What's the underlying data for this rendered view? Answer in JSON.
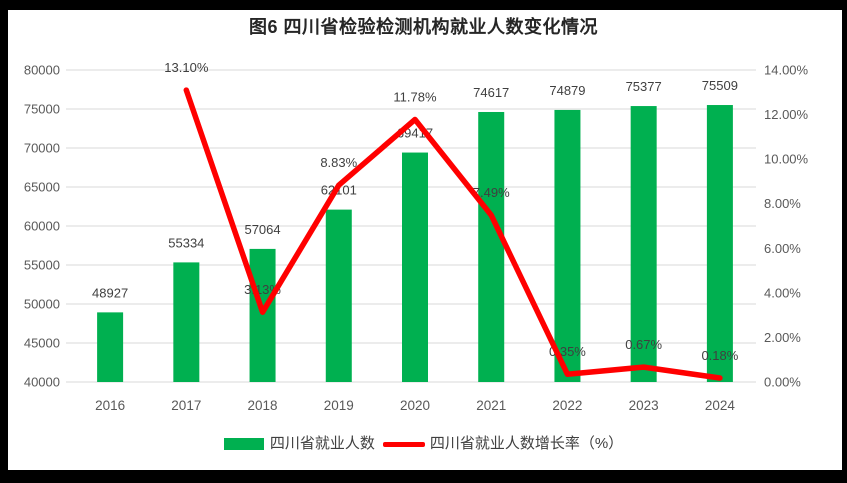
{
  "chart_data": {
    "type": "combo",
    "title": "图6  四川省检验检测机构就业人数变化情况",
    "categories": [
      "2016",
      "2017",
      "2018",
      "2019",
      "2020",
      "2021",
      "2022",
      "2023",
      "2024"
    ],
    "series": [
      {
        "name": "四川省就业人数",
        "type": "bar",
        "axis": "left",
        "color": "#00B050",
        "values": [
          48927,
          55334,
          57064,
          62101,
          69417,
          74617,
          74879,
          75377,
          75509
        ],
        "labels": [
          "48927",
          "55334",
          "57064",
          "62101",
          "69417",
          "74617",
          "74879",
          "75377",
          "75509"
        ]
      },
      {
        "name": "四川省就业人数增长率（%）",
        "type": "line",
        "axis": "right",
        "color": "#FF0000",
        "values": [
          null,
          13.1,
          3.13,
          8.83,
          11.78,
          7.49,
          0.35,
          0.67,
          0.18
        ],
        "labels": [
          "",
          "13.10%",
          "3.13%",
          "8.83%",
          "11.78%",
          "7.49%",
          "0.35%",
          "0.67%",
          "0.18%"
        ]
      }
    ],
    "left_axis": {
      "min": 40000,
      "max": 80000,
      "step": 5000,
      "ticks": [
        "40000",
        "45000",
        "50000",
        "55000",
        "60000",
        "65000",
        "70000",
        "75000",
        "80000"
      ]
    },
    "right_axis": {
      "min": 0,
      "max": 14,
      "step": 2,
      "ticks": [
        "0.00%",
        "2.00%",
        "4.00%",
        "6.00%",
        "8.00%",
        "10.00%",
        "12.00%",
        "14.00%"
      ]
    },
    "grid": true,
    "legend_position": "bottom",
    "colors": {
      "bar": "#00B050",
      "line": "#FF0000",
      "grid": "#D9D9D9",
      "axis_text": "#595959",
      "label_text": "#3F3F3F",
      "frame": "#000000"
    }
  }
}
